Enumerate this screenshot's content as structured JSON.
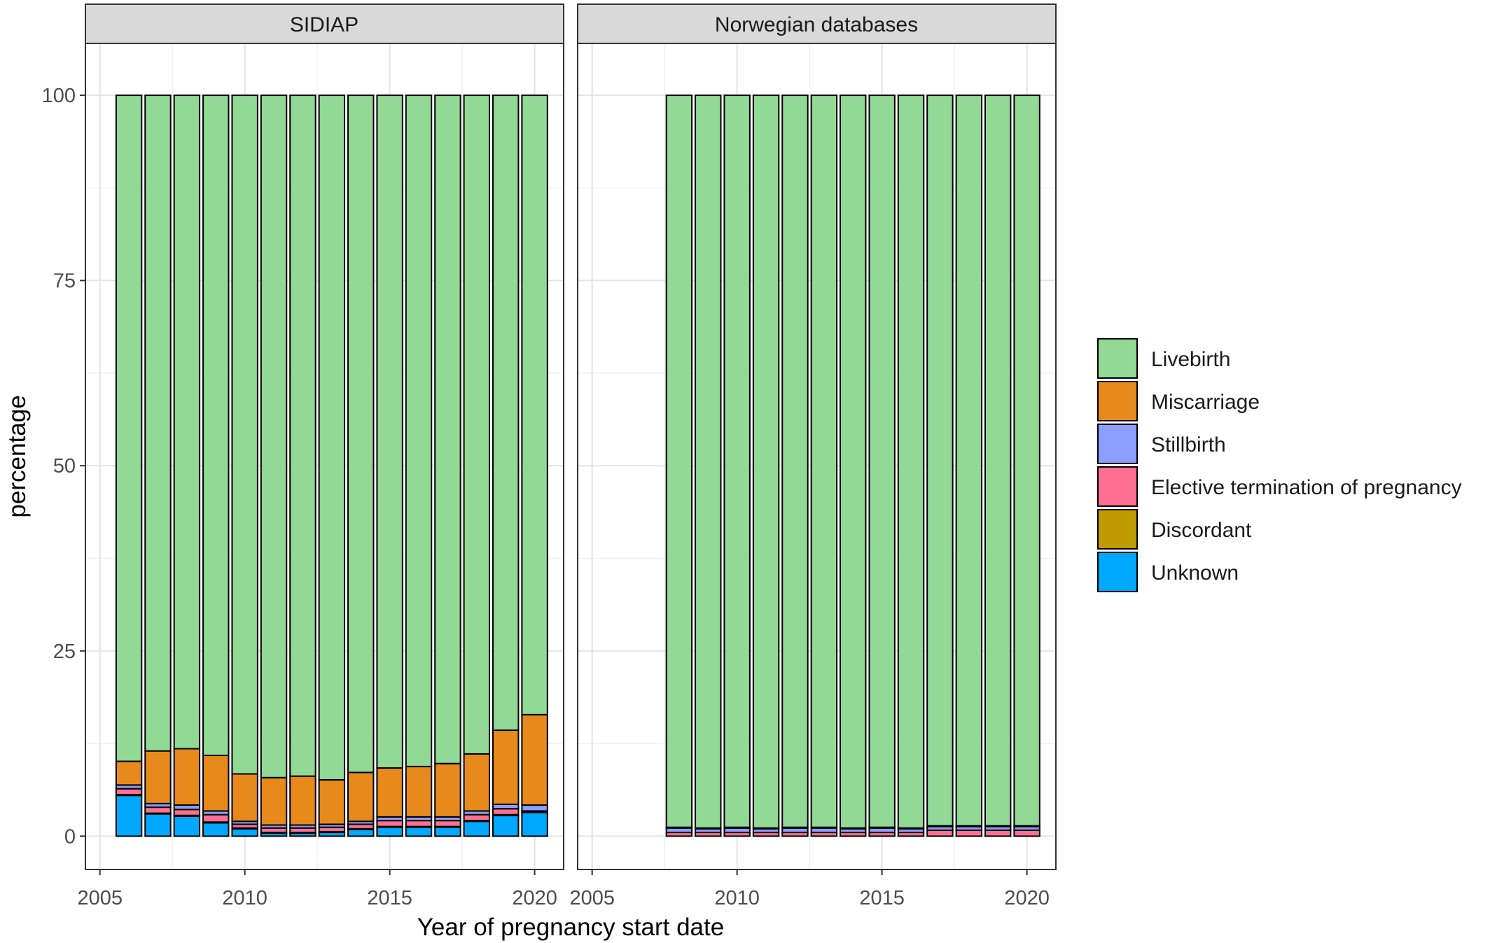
{
  "chart_data": {
    "type": "bar",
    "stacked": true,
    "xlabel": "Year of pregnancy start date",
    "ylabel": "percentage",
    "xlim": [
      2004.5,
      2021.0
    ],
    "ylim": [
      -4.5,
      107
    ],
    "x_ticks": [
      2005,
      2010,
      2015,
      2020
    ],
    "y_ticks": [
      0,
      25,
      50,
      75,
      100
    ],
    "grid": true,
    "legend_position": "right",
    "legend": [
      {
        "name": "Livebirth",
        "color": "#91D994"
      },
      {
        "name": "Miscarriage",
        "color": "#E8891C"
      },
      {
        "name": "Stillbirth",
        "color": "#8C9EFF"
      },
      {
        "name": "Elective termination of pregnancy",
        "color": "#FF6F91"
      },
      {
        "name": "Discordant",
        "color": "#BF9B00"
      },
      {
        "name": "Unknown",
        "color": "#00A8FF"
      }
    ],
    "facets": [
      {
        "label": "SIDIAP",
        "years": [
          2006,
          2007,
          2008,
          2009,
          2010,
          2011,
          2012,
          2013,
          2014,
          2015,
          2016,
          2017,
          2018,
          2019,
          2020
        ],
        "series": [
          {
            "name": "Unknown",
            "values": [
              5.5,
              3.0,
              2.7,
              1.8,
              1.0,
              0.4,
              0.4,
              0.5,
              0.9,
              1.2,
              1.2,
              1.2,
              2.0,
              2.8,
              3.2
            ]
          },
          {
            "name": "Discordant",
            "values": [
              0.1,
              0.1,
              0.1,
              0.1,
              0.1,
              0.1,
              0.1,
              0.1,
              0.1,
              0.1,
              0.1,
              0.1,
              0.1,
              0.1,
              0.1
            ]
          },
          {
            "name": "Elective termination of pregnancy",
            "values": [
              0.8,
              0.8,
              0.8,
              1.0,
              0.5,
              0.6,
              0.6,
              0.6,
              0.6,
              0.8,
              0.8,
              0.8,
              0.8,
              0.8,
              0.1
            ]
          },
          {
            "name": "Stillbirth",
            "values": [
              0.5,
              0.5,
              0.6,
              0.5,
              0.4,
              0.4,
              0.4,
              0.4,
              0.4,
              0.5,
              0.5,
              0.5,
              0.5,
              0.6,
              0.8
            ]
          },
          {
            "name": "Miscarriage",
            "values": [
              3.2,
              7.1,
              7.6,
              7.5,
              6.4,
              6.4,
              6.6,
              6.0,
              6.6,
              6.6,
              6.8,
              7.2,
              7.7,
              10.0,
              12.2
            ]
          },
          {
            "name": "Livebirth",
            "values": [
              89.9,
              88.5,
              88.2,
              89.1,
              91.6,
              92.1,
              91.9,
              92.4,
              91.4,
              90.8,
              90.6,
              90.2,
              88.9,
              85.7,
              83.6
            ]
          }
        ]
      },
      {
        "label": "Norwegian databases",
        "years": [
          2008,
          2009,
          2010,
          2011,
          2012,
          2013,
          2014,
          2015,
          2016,
          2017,
          2018,
          2019,
          2020
        ],
        "series": [
          {
            "name": "Unknown",
            "values": [
              0,
              0,
              0,
              0,
              0,
              0,
              0,
              0,
              0,
              0,
              0,
              0,
              0
            ]
          },
          {
            "name": "Discordant",
            "values": [
              0,
              0,
              0,
              0,
              0,
              0,
              0,
              0,
              0,
              0,
              0,
              0,
              0
            ]
          },
          {
            "name": "Elective termination of pregnancy",
            "values": [
              0.5,
              0.5,
              0.5,
              0.5,
              0.5,
              0.5,
              0.5,
              0.5,
              0.5,
              0.8,
              0.8,
              0.8,
              0.8
            ]
          },
          {
            "name": "Stillbirth",
            "values": [
              0.6,
              0.5,
              0.6,
              0.5,
              0.6,
              0.6,
              0.5,
              0.6,
              0.5,
              0.5,
              0.5,
              0.5,
              0.5
            ]
          },
          {
            "name": "Miscarriage",
            "values": [
              0.1,
              0.1,
              0.1,
              0.1,
              0.1,
              0.1,
              0.1,
              0.1,
              0.1,
              0.1,
              0.1,
              0.1,
              0.1
            ]
          },
          {
            "name": "Livebirth",
            "values": [
              98.8,
              98.9,
              98.8,
              98.9,
              98.8,
              98.8,
              98.9,
              98.8,
              98.9,
              98.6,
              98.6,
              98.6,
              98.6
            ]
          }
        ]
      }
    ]
  }
}
